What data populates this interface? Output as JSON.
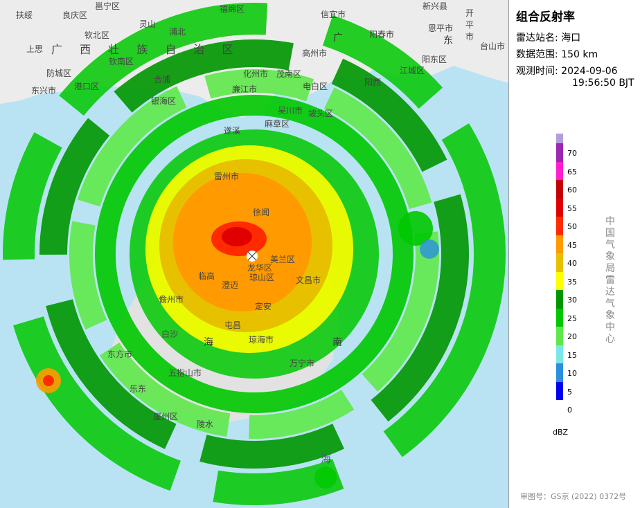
{
  "panel": {
    "title": "组合反射率",
    "station_label": "雷达站名:",
    "station_value": "海口",
    "range_label": "数据范围:",
    "range_value": "150 km",
    "time_label": "观测时间:",
    "time_date": "2024-09-06",
    "time_clock": "19:56:50 BJT",
    "unit": "dBZ",
    "org": "中国气象局雷达气象中心",
    "approval": "审图号：GS京 (2022) 0372号"
  },
  "legend": [
    {
      "value": "70",
      "color": "#b39ddb"
    },
    {
      "value": "65",
      "color": "#9c27b0"
    },
    {
      "value": "60",
      "color": "#ff1fcf"
    },
    {
      "value": "55",
      "color": "#c40000"
    },
    {
      "value": "50",
      "color": "#e00000"
    },
    {
      "value": "45",
      "color": "#ff2a00"
    },
    {
      "value": "40",
      "color": "#ff9a00"
    },
    {
      "value": "35",
      "color": "#e7c000"
    },
    {
      "value": "30",
      "color": "#ffff00"
    },
    {
      "value": "25",
      "color": "#009600"
    },
    {
      "value": "20",
      "color": "#00c800"
    },
    {
      "value": "15",
      "color": "#5fe84a"
    },
    {
      "value": "10",
      "color": "#7fe6e6"
    },
    {
      "value": "5",
      "color": "#2b8fe0"
    },
    {
      "value": "0",
      "color": "#0000f0"
    }
  ],
  "map_labels": [
    {
      "text": "扶绥",
      "cls": ""
    },
    {
      "text": "良庆区",
      "cls": ""
    },
    {
      "text": "邕宁区",
      "cls": ""
    },
    {
      "text": "福绵区",
      "cls": ""
    },
    {
      "text": "信宜市",
      "cls": ""
    },
    {
      "text": "新兴县",
      "cls": ""
    },
    {
      "text": "开平市",
      "cls": ""
    },
    {
      "text": "钦北区",
      "cls": ""
    },
    {
      "text": "灵山",
      "cls": ""
    },
    {
      "text": "浦北",
      "cls": ""
    },
    {
      "text": "阳春市",
      "cls": ""
    },
    {
      "text": "恩平市",
      "cls": ""
    },
    {
      "text": "上思",
      "cls": ""
    },
    {
      "text": "广 西 壮 族 自 治 区",
      "cls": "region"
    },
    {
      "text": "广",
      "cls": "big"
    },
    {
      "text": "东",
      "cls": "big"
    },
    {
      "text": "钦南区",
      "cls": ""
    },
    {
      "text": "高州市",
      "cls": ""
    },
    {
      "text": "阳东区",
      "cls": ""
    },
    {
      "text": "台山市",
      "cls": ""
    },
    {
      "text": "防城区",
      "cls": ""
    },
    {
      "text": "合浦",
      "cls": ""
    },
    {
      "text": "化州市",
      "cls": ""
    },
    {
      "text": "电白区",
      "cls": ""
    },
    {
      "text": "江城区",
      "cls": ""
    },
    {
      "text": "东兴市",
      "cls": ""
    },
    {
      "text": "港口区",
      "cls": ""
    },
    {
      "text": "廉江市",
      "cls": ""
    },
    {
      "text": "茂南区",
      "cls": ""
    },
    {
      "text": "阳西",
      "cls": ""
    },
    {
      "text": "银海区",
      "cls": ""
    },
    {
      "text": "吴川市",
      "cls": ""
    },
    {
      "text": "坡头区",
      "cls": ""
    },
    {
      "text": "麻章区",
      "cls": ""
    },
    {
      "text": "遂溪",
      "cls": ""
    },
    {
      "text": "雷州市",
      "cls": ""
    },
    {
      "text": "徐闻",
      "cls": ""
    },
    {
      "text": "美兰区",
      "cls": ""
    },
    {
      "text": "龙华区",
      "cls": ""
    },
    {
      "text": "临高",
      "cls": ""
    },
    {
      "text": "澄迈",
      "cls": ""
    },
    {
      "text": "琼山区",
      "cls": ""
    },
    {
      "text": "文昌市",
      "cls": ""
    },
    {
      "text": "儋州市",
      "cls": ""
    },
    {
      "text": "定安",
      "cls": ""
    },
    {
      "text": "屯昌",
      "cls": ""
    },
    {
      "text": "白沙",
      "cls": ""
    },
    {
      "text": "海",
      "cls": "big"
    },
    {
      "text": "南",
      "cls": "big"
    },
    {
      "text": "琼海市",
      "cls": ""
    },
    {
      "text": "东方市",
      "cls": ""
    },
    {
      "text": "万宁市",
      "cls": ""
    },
    {
      "text": "乐东",
      "cls": ""
    },
    {
      "text": "五指山市",
      "cls": ""
    },
    {
      "text": "陵水",
      "cls": ""
    },
    {
      "text": "崖州区",
      "cls": ""
    },
    {
      "text": "海",
      "cls": "sea"
    }
  ]
}
